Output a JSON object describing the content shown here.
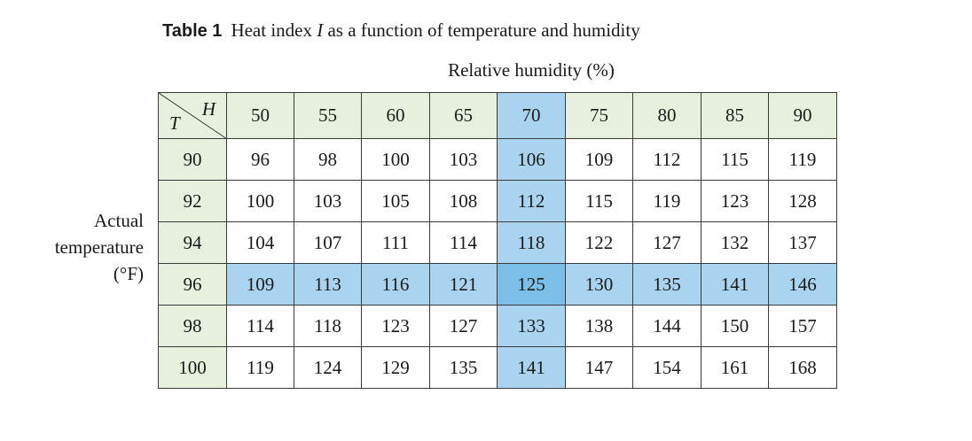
{
  "caption": {
    "label": "Table 1",
    "text_before": "Heat index ",
    "symbol": "I",
    "text_after": " as a function of temperature and humidity"
  },
  "column_axis_label": "Relative humidity (%)",
  "row_axis_label": [
    "Actual",
    "temperature",
    "(°F)"
  ],
  "corner": {
    "column_symbol": "H",
    "row_symbol": "T"
  },
  "humidity": [
    "50",
    "55",
    "60",
    "65",
    "70",
    "75",
    "80",
    "85",
    "90"
  ],
  "rows": [
    {
      "temperature": "90",
      "values": [
        "96",
        "98",
        "100",
        "103",
        "106",
        "109",
        "112",
        "115",
        "119"
      ]
    },
    {
      "temperature": "92",
      "values": [
        "100",
        "103",
        "105",
        "108",
        "112",
        "115",
        "119",
        "123",
        "128"
      ]
    },
    {
      "temperature": "94",
      "values": [
        "104",
        "107",
        "111",
        "114",
        "118",
        "122",
        "127",
        "132",
        "137"
      ]
    },
    {
      "temperature": "96",
      "values": [
        "109",
        "113",
        "116",
        "121",
        "125",
        "130",
        "135",
        "141",
        "146"
      ]
    },
    {
      "temperature": "98",
      "values": [
        "114",
        "118",
        "123",
        "127",
        "133",
        "138",
        "144",
        "150",
        "157"
      ]
    },
    {
      "temperature": "100",
      "values": [
        "119",
        "124",
        "129",
        "135",
        "141",
        "147",
        "154",
        "161",
        "168"
      ]
    }
  ],
  "highlight": {
    "row_temperature": "96",
    "column_humidity": "70"
  },
  "colors": {
    "header": "#e6f0dc",
    "highlight": "#a9d3ef",
    "intersection": "#7bbfe8",
    "border": "#3a3a3a"
  }
}
